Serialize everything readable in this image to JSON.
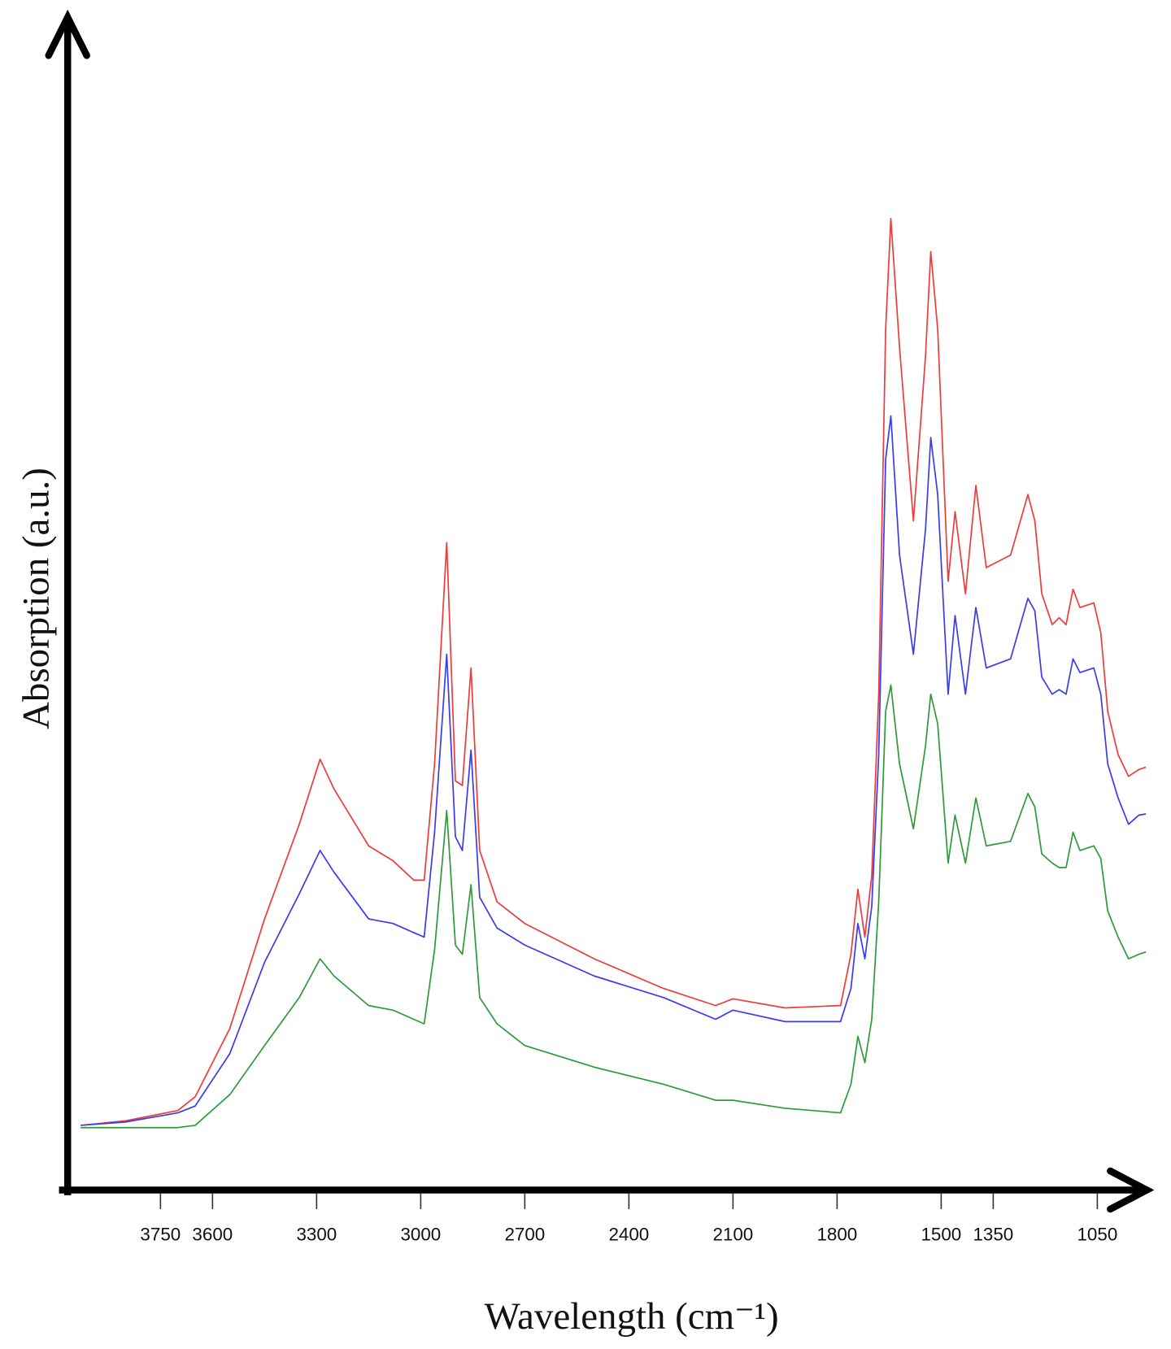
{
  "chart_data": {
    "type": "line",
    "x_label": "Wavelength (cm⁻¹)",
    "y_label": "Absorption (a.u.)",
    "xlim": [
      4000,
      900
    ],
    "ylim": [
      0,
      100
    ],
    "xticks": [
      3750,
      3600,
      3300,
      3000,
      2700,
      2400,
      2100,
      1800,
      1500,
      1350,
      1050
    ],
    "x": [
      3980,
      3850,
      3700,
      3650,
      3550,
      3450,
      3350,
      3290,
      3250,
      3150,
      3080,
      3020,
      2990,
      2960,
      2925,
      2900,
      2880,
      2855,
      2830,
      2780,
      2700,
      2500,
      2300,
      2150,
      2100,
      1950,
      1790,
      1760,
      1740,
      1720,
      1700,
      1680,
      1660,
      1645,
      1620,
      1580,
      1545,
      1530,
      1510,
      1480,
      1460,
      1430,
      1400,
      1370,
      1300,
      1250,
      1230,
      1210,
      1180,
      1160,
      1140,
      1120,
      1100,
      1060,
      1040,
      1020,
      990,
      960,
      930,
      910
    ],
    "series": [
      {
        "color": "#ee3b3b",
        "values": [
          5.9,
          6.3,
          7.2,
          8.4,
          14.4,
          24.0,
          32.3,
          38.0,
          35.4,
          30.4,
          29.1,
          27.4,
          27.4,
          37.6,
          57.0,
          36.1,
          35.7,
          46.0,
          30.0,
          25.5,
          23.6,
          20.5,
          17.9,
          16.4,
          17.0,
          16.2,
          16.4,
          20.9,
          26.6,
          22.4,
          27.8,
          43.7,
          75.7,
          85.4,
          74.1,
          58.9,
          73.4,
          82.5,
          75.7,
          53.6,
          59.7,
          52.5,
          62.0,
          54.8,
          55.9,
          61.2,
          58.9,
          52.5,
          49.8,
          50.4,
          49.8,
          52.9,
          51.3,
          51.7,
          49.1,
          42.2,
          38.4,
          36.5,
          37.1,
          37.3
        ]
      },
      {
        "color": "#3b3bee",
        "values": [
          5.9,
          6.2,
          7.0,
          7.6,
          12.2,
          20.2,
          26.2,
          30.0,
          28.1,
          24.0,
          23.6,
          22.8,
          22.4,
          31.6,
          47.2,
          31.2,
          30.0,
          38.8,
          25.9,
          23.2,
          21.7,
          19.0,
          17.1,
          15.2,
          16.0,
          15.0,
          15.0,
          17.9,
          23.6,
          20.5,
          25.1,
          38.4,
          64.3,
          68.1,
          55.9,
          47.2,
          58.2,
          66.2,
          61.2,
          43.7,
          50.6,
          43.7,
          51.3,
          46.0,
          46.8,
          52.1,
          51.0,
          45.2,
          43.7,
          44.1,
          43.7,
          46.8,
          45.6,
          46.0,
          43.7,
          37.6,
          34.6,
          32.3,
          33.1,
          33.2
        ]
      },
      {
        "color": "#2e9a3a",
        "values": [
          5.7,
          5.7,
          5.7,
          5.9,
          8.6,
          12.9,
          17.1,
          20.5,
          19.0,
          16.4,
          16.0,
          15.2,
          14.8,
          21.3,
          33.5,
          21.7,
          20.9,
          27.0,
          17.1,
          14.8,
          12.9,
          11.0,
          9.5,
          8.1,
          8.1,
          7.4,
          7.0,
          9.5,
          13.7,
          11.4,
          15.2,
          25.5,
          42.2,
          44.5,
          37.6,
          31.9,
          39.2,
          43.7,
          41.1,
          28.9,
          33.1,
          28.9,
          34.6,
          30.4,
          30.8,
          35.0,
          33.8,
          29.7,
          28.9,
          28.5,
          28.5,
          31.6,
          30.0,
          30.4,
          29.3,
          24.7,
          22.4,
          20.5,
          20.9,
          21.1
        ]
      }
    ]
  }
}
